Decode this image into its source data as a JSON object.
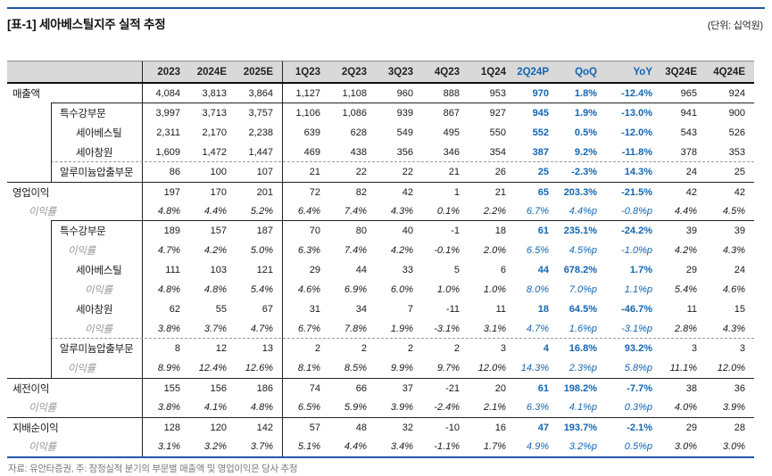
{
  "page": {
    "title": "[표-1] 세아베스틸지주 실적 추정",
    "unit_label": "(단위: 십억원)",
    "footnote": "자료: 유안타증권, 주: 잠정실적 분기의 부문별 매출액 및 영업이익은 당사 추정"
  },
  "colors": {
    "accent": "#1565b0",
    "rule_blue": "#2057a7",
    "header_bg": "#d9d9d9",
    "muted": "#979797",
    "footnote": "#7a7a7a"
  },
  "table": {
    "columns": [
      {
        "label": "2023",
        "accent": false
      },
      {
        "label": "2024E",
        "accent": false
      },
      {
        "label": "2025E",
        "accent": false
      },
      {
        "label": "1Q23",
        "accent": false
      },
      {
        "label": "2Q23",
        "accent": false
      },
      {
        "label": "3Q23",
        "accent": false
      },
      {
        "label": "4Q23",
        "accent": false
      },
      {
        "label": "1Q24",
        "accent": false
      },
      {
        "label": "2Q24P",
        "accent": true
      },
      {
        "label": "QoQ",
        "accent": true
      },
      {
        "label": "YoY",
        "accent": true
      },
      {
        "label": "3Q24E",
        "accent": false
      },
      {
        "label": "4Q24E",
        "accent": false
      }
    ],
    "rows": [
      {
        "label": "매출액",
        "level": 0,
        "margin": false,
        "box": false,
        "top": "none",
        "values": [
          "4,084",
          "3,813",
          "3,864",
          "1,127",
          "1,108",
          "960",
          "888",
          "953",
          "970",
          "1.8%",
          "-12.4%",
          "965",
          "924"
        ]
      },
      {
        "label": "특수강부문",
        "level": 2,
        "margin": false,
        "box": true,
        "top": "solid-inner",
        "values": [
          "3,997",
          "3,713",
          "3,757",
          "1,106",
          "1,086",
          "939",
          "867",
          "927",
          "945",
          "1.9%",
          "-13.0%",
          "941",
          "900"
        ]
      },
      {
        "label": "세아베스틸",
        "level": 4,
        "margin": false,
        "box": true,
        "top": "none",
        "values": [
          "2,311",
          "2,170",
          "2,238",
          "639",
          "628",
          "549",
          "495",
          "550",
          "552",
          "0.5%",
          "-12.0%",
          "543",
          "526"
        ]
      },
      {
        "label": "세아창원",
        "level": 4,
        "margin": false,
        "box": true,
        "top": "none",
        "values": [
          "1,609",
          "1,472",
          "1,447",
          "469",
          "438",
          "356",
          "346",
          "354",
          "387",
          "9.2%",
          "-11.8%",
          "378",
          "353"
        ]
      },
      {
        "label": "알루미늄압출부문",
        "level": 2,
        "margin": false,
        "box": true,
        "top": "dashed-inner",
        "values": [
          "86",
          "100",
          "107",
          "21",
          "22",
          "22",
          "21",
          "26",
          "25",
          "-2.3%",
          "14.3%",
          "24",
          "25"
        ]
      },
      {
        "label": "영업이익",
        "level": 0,
        "margin": false,
        "box": false,
        "top": "solid-full",
        "values": [
          "197",
          "170",
          "201",
          "72",
          "82",
          "42",
          "1",
          "21",
          "65",
          "203.3%",
          "-21.5%",
          "42",
          "42"
        ]
      },
      {
        "label": "이익률",
        "level": 1,
        "margin": true,
        "box": false,
        "top": "none",
        "values": [
          "4.8%",
          "4.4%",
          "5.2%",
          "6.4%",
          "7.4%",
          "4.3%",
          "0.1%",
          "2.2%",
          "6.7%",
          "4.4%p",
          "-0.8%p",
          "4.4%",
          "4.5%"
        ]
      },
      {
        "label": "특수강부문",
        "level": 2,
        "margin": false,
        "box": true,
        "top": "solid-inner",
        "values": [
          "189",
          "157",
          "187",
          "70",
          "80",
          "40",
          "-1",
          "18",
          "61",
          "235.1%",
          "-24.2%",
          "39",
          "39"
        ]
      },
      {
        "label": "이익률",
        "level": 3,
        "margin": true,
        "box": true,
        "top": "none",
        "values": [
          "4.7%",
          "4.2%",
          "5.0%",
          "6.3%",
          "7.4%",
          "4.2%",
          "-0.1%",
          "2.0%",
          "6.5%",
          "4.5%p",
          "-1.0%p",
          "4.2%",
          "4.3%"
        ]
      },
      {
        "label": "세아베스틸",
        "level": 4,
        "margin": false,
        "box": true,
        "top": "none",
        "values": [
          "111",
          "103",
          "121",
          "29",
          "44",
          "33",
          "5",
          "6",
          "44",
          "678.2%",
          "1.7%",
          "29",
          "24"
        ]
      },
      {
        "label": "이익률",
        "level": 5,
        "margin": true,
        "box": true,
        "top": "none",
        "values": [
          "4.8%",
          "4.8%",
          "5.4%",
          "4.6%",
          "6.9%",
          "6.0%",
          "1.0%",
          "1.0%",
          "8.0%",
          "7.0%p",
          "1.1%p",
          "5.4%",
          "4.6%"
        ]
      },
      {
        "label": "세아창원",
        "level": 4,
        "margin": false,
        "box": true,
        "top": "none",
        "values": [
          "62",
          "55",
          "67",
          "31",
          "34",
          "7",
          "-11",
          "11",
          "18",
          "64.5%",
          "-46.7%",
          "11",
          "15"
        ]
      },
      {
        "label": "이익률",
        "level": 5,
        "margin": true,
        "box": true,
        "top": "none",
        "values": [
          "3.8%",
          "3.7%",
          "4.7%",
          "6.7%",
          "7.8%",
          "1.9%",
          "-3.1%",
          "3.1%",
          "4.7%",
          "1.6%p",
          "-3.1%p",
          "2.8%",
          "4.3%"
        ]
      },
      {
        "label": "알루미늄압출부문",
        "level": 2,
        "margin": false,
        "box": true,
        "top": "dashed-inner",
        "values": [
          "8",
          "12",
          "13",
          "2",
          "2",
          "2",
          "2",
          "3",
          "4",
          "16.8%",
          "93.2%",
          "3",
          "3"
        ]
      },
      {
        "label": "이익률",
        "level": 3,
        "margin": true,
        "box": true,
        "top": "none",
        "values": [
          "8.9%",
          "12.4%",
          "12.6%",
          "8.1%",
          "8.5%",
          "9.9%",
          "9.7%",
          "12.0%",
          "14.3%",
          "2.3%p",
          "5.8%p",
          "11.1%",
          "12.0%"
        ]
      },
      {
        "label": "세전이익",
        "level": 0,
        "margin": false,
        "box": false,
        "top": "solid-full",
        "values": [
          "155",
          "156",
          "186",
          "74",
          "66",
          "37",
          "-21",
          "20",
          "61",
          "198.2%",
          "-7.7%",
          "38",
          "36"
        ]
      },
      {
        "label": "이익률",
        "level": 1,
        "margin": true,
        "box": false,
        "top": "none",
        "values": [
          "3.8%",
          "4.1%",
          "4.8%",
          "6.5%",
          "5.9%",
          "3.9%",
          "-2.4%",
          "2.1%",
          "6.3%",
          "4.1%p",
          "0.3%p",
          "4.0%",
          "3.9%"
        ]
      },
      {
        "label": "지배순이익",
        "level": 0,
        "margin": false,
        "box": false,
        "top": "solid-full",
        "values": [
          "128",
          "120",
          "142",
          "57",
          "48",
          "32",
          "-10",
          "16",
          "47",
          "193.7%",
          "-2.1%",
          "29",
          "28"
        ]
      },
      {
        "label": "이익률",
        "level": 1,
        "margin": true,
        "box": false,
        "top": "none",
        "values": [
          "3.1%",
          "3.2%",
          "3.7%",
          "5.1%",
          "4.4%",
          "3.4%",
          "-1.1%",
          "1.7%",
          "4.9%",
          "3.2%p",
          "0.5%p",
          "3.0%",
          "3.0%"
        ]
      }
    ]
  }
}
